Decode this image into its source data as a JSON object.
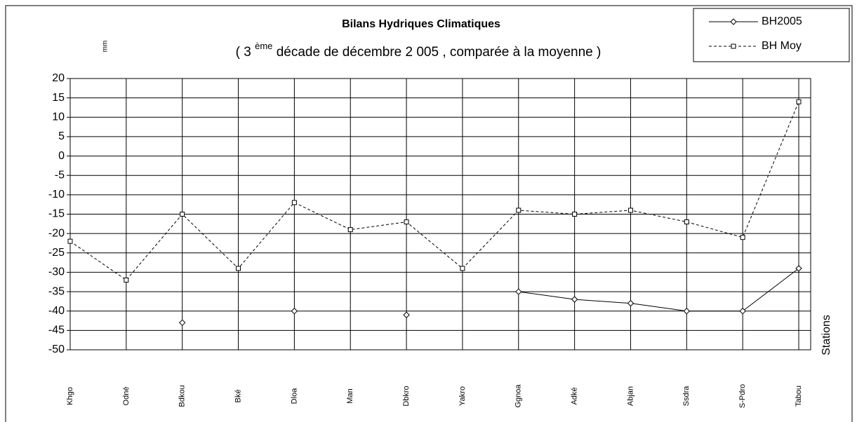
{
  "chart_data": {
    "type": "line",
    "title": "Bilans Hydriques Climatiques",
    "subtitle_parts": [
      "( 3 ",
      "ème",
      " décade   de décembre 2 005 , comparée à la moyenne )"
    ],
    "y_label": "mm",
    "x_label": "Stations",
    "categories": [
      "Khgo",
      "Odné",
      "Bdkou",
      "Bké",
      "Dloa",
      "Man",
      "Dbkro",
      "Yakro",
      "Ggnoa",
      "Adké",
      "Abjan",
      "Ssdra",
      "S-Pdro",
      "Tabou"
    ],
    "series": [
      {
        "name": "BH2005",
        "color": "#000000",
        "line_style": "solid",
        "marker": "diamond",
        "values": [
          null,
          null,
          -43,
          null,
          -40,
          null,
          -41,
          null,
          -35,
          -37,
          -38,
          -40,
          -40,
          -29
        ]
      },
      {
        "name": "BH Moy",
        "color": "#000000",
        "line_style": "dashed",
        "marker": "square",
        "values": [
          -22,
          -32,
          -15,
          -29,
          -12,
          -19,
          -17,
          -29,
          -14,
          -15,
          -14,
          -17,
          -21,
          14
        ]
      }
    ],
    "ylim": [
      -50,
      20
    ],
    "yticks": [
      -50,
      -45,
      -40,
      -35,
      -30,
      -25,
      -20,
      -15,
      -10,
      -5,
      0,
      5,
      10,
      15,
      20
    ],
    "grid": true,
    "legend": "top-right"
  }
}
